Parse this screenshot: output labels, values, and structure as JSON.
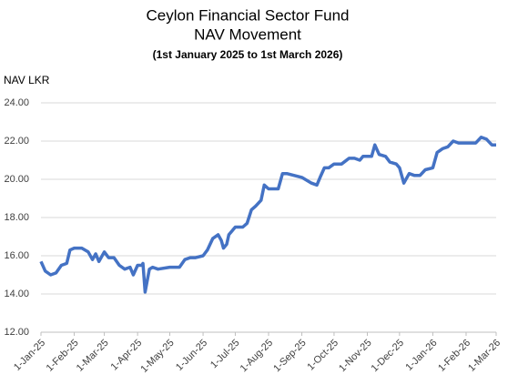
{
  "chart_data": {
    "type": "line",
    "title": "Ceylon Financial Sector Fund",
    "subtitle": "NAV Movement",
    "period": "(1st January 2025 to 1st March 2026)",
    "y_label": "NAV LKR",
    "grid": true,
    "xlim": [
      "2025-01-01",
      "2026-03-01"
    ],
    "xticks": [
      {
        "value": "2025-01-01",
        "label": "1-Jan-25"
      },
      {
        "value": "2025-02-01",
        "label": "1-Feb-25"
      },
      {
        "value": "2025-03-01",
        "label": "1-Mar-25"
      },
      {
        "value": "2025-04-01",
        "label": "1-Apr-25"
      },
      {
        "value": "2025-05-01",
        "label": "1-May-25"
      },
      {
        "value": "2025-06-01",
        "label": "1-Jun-25"
      },
      {
        "value": "2025-07-01",
        "label": "1-Jul-25"
      },
      {
        "value": "2025-08-01",
        "label": "1-Aug-25"
      },
      {
        "value": "2025-09-01",
        "label": "1-Sep-25"
      },
      {
        "value": "2025-10-01",
        "label": "1-Oct-25"
      },
      {
        "value": "2025-11-01",
        "label": "1-Nov-25"
      },
      {
        "value": "2025-12-01",
        "label": "1-Dec-25"
      },
      {
        "value": "2026-01-01",
        "label": "1-Jan-26"
      },
      {
        "value": "2026-02-01",
        "label": "1-Feb-26"
      },
      {
        "value": "2026-03-01",
        "label": "1-Mar-26"
      }
    ],
    "ylim": [
      12,
      24
    ],
    "yticks": [
      {
        "value": 12,
        "label": "12.00"
      },
      {
        "value": 14,
        "label": "14.00"
      },
      {
        "value": 16,
        "label": "16.00"
      },
      {
        "value": 18,
        "label": "18.00"
      },
      {
        "value": 20,
        "label": "20.00"
      },
      {
        "value": 22,
        "label": "22.00"
      },
      {
        "value": 24,
        "label": "24.00"
      }
    ],
    "x": [
      "2025-01-01",
      "2025-01-05",
      "2025-01-10",
      "2025-01-15",
      "2025-01-20",
      "2025-01-25",
      "2025-01-28",
      "2025-02-01",
      "2025-02-08",
      "2025-02-14",
      "2025-02-18",
      "2025-02-21",
      "2025-02-24",
      "2025-03-01",
      "2025-03-05",
      "2025-03-10",
      "2025-03-15",
      "2025-03-20",
      "2025-03-25",
      "2025-03-28",
      "2025-04-01",
      "2025-04-05",
      "2025-04-06",
      "2025-04-08",
      "2025-04-12",
      "2025-04-15",
      "2025-04-20",
      "2025-05-01",
      "2025-05-10",
      "2025-05-15",
      "2025-05-20",
      "2025-05-25",
      "2025-06-01",
      "2025-06-05",
      "2025-06-10",
      "2025-06-15",
      "2025-06-18",
      "2025-06-20",
      "2025-06-23",
      "2025-06-25",
      "2025-07-01",
      "2025-07-08",
      "2025-07-12",
      "2025-07-16",
      "2025-07-20",
      "2025-07-25",
      "2025-07-28",
      "2025-08-01",
      "2025-08-05",
      "2025-08-10",
      "2025-08-14",
      "2025-08-18",
      "2025-08-25",
      "2025-09-01",
      "2025-09-10",
      "2025-09-15",
      "2025-09-18",
      "2025-09-22",
      "2025-09-26",
      "2025-10-01",
      "2025-10-08",
      "2025-10-15",
      "2025-10-20",
      "2025-10-25",
      "2025-10-28",
      "2025-11-01",
      "2025-11-05",
      "2025-11-08",
      "2025-11-12",
      "2025-11-18",
      "2025-11-22",
      "2025-11-28",
      "2025-12-01",
      "2025-12-05",
      "2025-12-10",
      "2025-12-15",
      "2025-12-20",
      "2025-12-25",
      "2026-01-01",
      "2026-01-05",
      "2026-01-10",
      "2026-01-15",
      "2026-01-20",
      "2026-01-25",
      "2026-02-01",
      "2026-02-10",
      "2026-02-15",
      "2026-02-20",
      "2026-02-25",
      "2026-03-01"
    ],
    "series": [
      {
        "name": "NAV",
        "color": "#4472c4",
        "values": [
          15.7,
          15.2,
          15.0,
          15.1,
          15.5,
          15.6,
          16.3,
          16.4,
          16.4,
          16.2,
          15.8,
          16.1,
          15.7,
          16.2,
          15.9,
          15.9,
          15.5,
          15.3,
          15.4,
          15.0,
          15.5,
          15.5,
          15.6,
          14.1,
          15.3,
          15.4,
          15.3,
          15.4,
          15.4,
          15.8,
          15.9,
          15.9,
          16.0,
          16.3,
          16.9,
          17.1,
          16.8,
          16.4,
          16.6,
          17.1,
          17.5,
          17.5,
          17.7,
          18.4,
          18.6,
          18.9,
          19.7,
          19.5,
          19.5,
          19.5,
          20.3,
          20.3,
          20.2,
          20.1,
          19.8,
          19.7,
          20.1,
          20.6,
          20.6,
          20.8,
          20.8,
          21.1,
          21.1,
          21.0,
          21.2,
          21.2,
          21.2,
          21.8,
          21.3,
          21.2,
          20.9,
          20.8,
          20.6,
          19.8,
          20.3,
          20.2,
          20.2,
          20.5,
          20.6,
          21.4,
          21.6,
          21.7,
          22.0,
          21.9,
          21.9,
          21.9,
          22.2,
          22.1,
          21.8,
          21.8
        ]
      }
    ]
  }
}
